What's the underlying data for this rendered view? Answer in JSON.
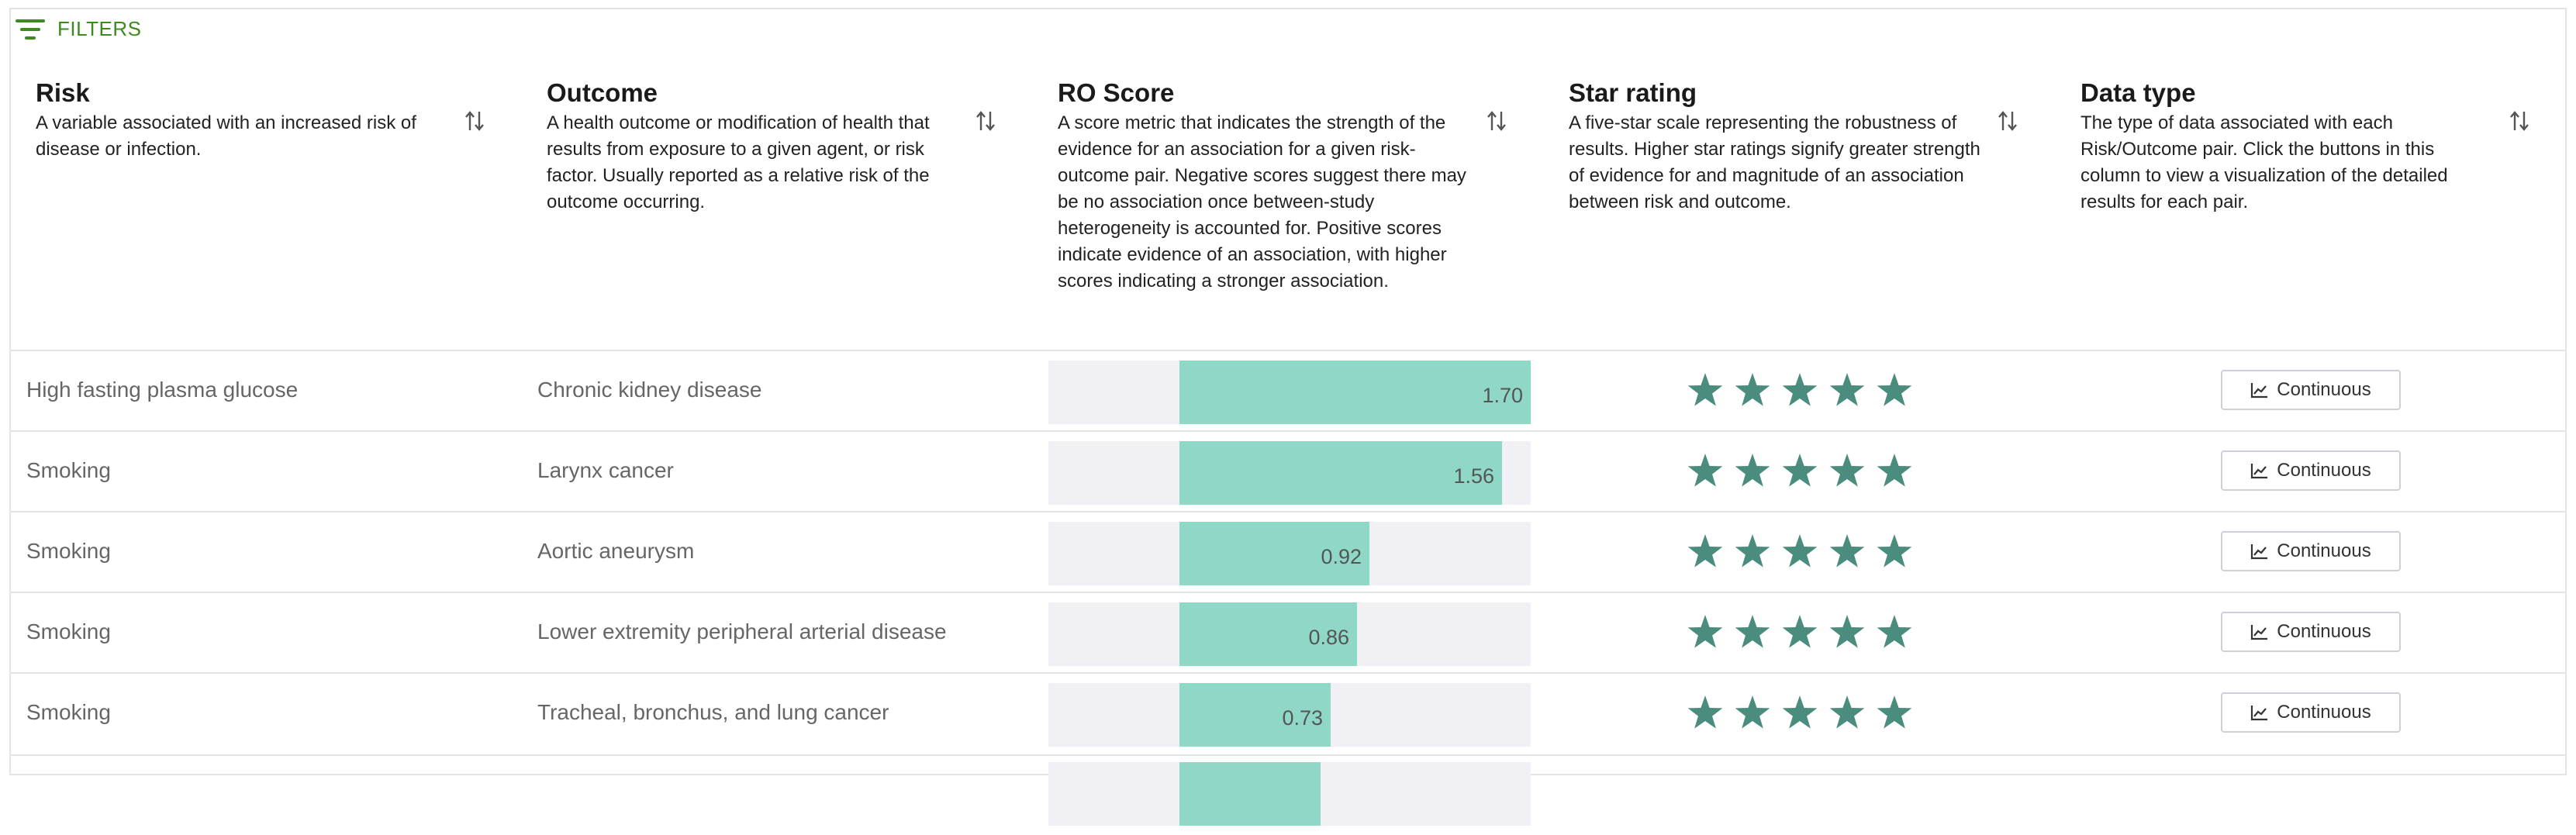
{
  "toolbar": {
    "filters_label": "FILTERS"
  },
  "columns": [
    {
      "title": "Risk",
      "description": "A variable associated with an increased risk of disease or infection."
    },
    {
      "title": "Outcome",
      "description": "A health outcome or modification of health that results from exposure to a given agent, or risk factor. Usually reported as a relative risk of the outcome occurring."
    },
    {
      "title": "RO Score",
      "description": "A score metric that indicates the strength of the evidence for an association for a given risk-outcome pair. Negative scores suggest there may be no association once between-study heterogeneity is accounted for. Positive scores indicate evidence of an association, with higher scores indicating a stronger association."
    },
    {
      "title": "Star rating",
      "description": "A five-star scale representing the robustness of results. Higher star ratings signify greater strength of evidence for and magnitude of an association between risk and outcome."
    },
    {
      "title": "Data type",
      "description": "The type of data associated with each Risk/Outcome pair. Click the buttons in this column to view a visualization of the detailed results for each pair."
    }
  ],
  "score_scale_max": 1.7,
  "colors": {
    "bar_fill": "#8fd8c7",
    "bar_bg": "#f1f1f5",
    "star": "#4a8c7d",
    "accent": "#3d8a1f"
  },
  "rows": [
    {
      "risk": "High fasting plasma glucose",
      "outcome": "Chronic kidney disease",
      "score": "1.70",
      "stars": 5,
      "data_type": "Continuous"
    },
    {
      "risk": "Smoking",
      "outcome": "Larynx cancer",
      "score": "1.56",
      "stars": 5,
      "data_type": "Continuous"
    },
    {
      "risk": "Smoking",
      "outcome": "Aortic aneurysm",
      "score": "0.92",
      "stars": 5,
      "data_type": "Continuous"
    },
    {
      "risk": "Smoking",
      "outcome": "Lower extremity peripheral arterial disease",
      "score": "0.86",
      "stars": 5,
      "data_type": "Continuous"
    },
    {
      "risk": "Smoking",
      "outcome": "Tracheal, bronchus, and lung cancer",
      "score": "0.73",
      "stars": 5,
      "data_type": "Continuous"
    }
  ]
}
